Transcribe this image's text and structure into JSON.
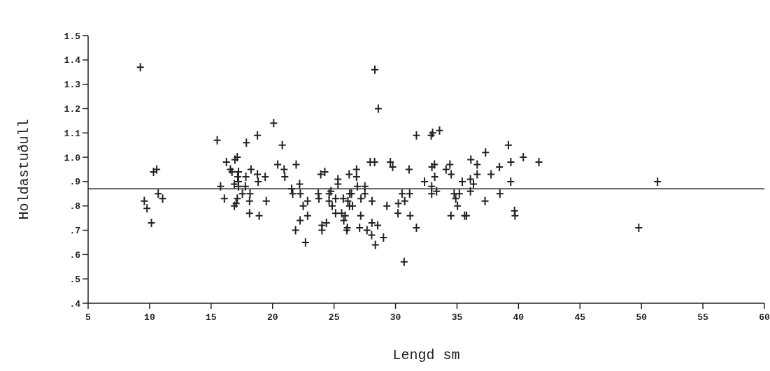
{
  "chart_data": {
    "type": "scatter",
    "xlabel": "Lengd sm",
    "ylabel": "Holdastuðull",
    "marker": "cross",
    "grid": false,
    "xlim": [
      5,
      60
    ],
    "xticks": [
      5,
      10,
      15,
      20,
      25,
      30,
      35,
      40,
      45,
      50,
      55,
      60
    ],
    "ylim": [
      0.4,
      1.5
    ],
    "yticks": [
      {
        "value": 0.4,
        "label": ".4"
      },
      {
        "value": 0.5,
        "label": ".5"
      },
      {
        "value": 0.6,
        "label": ".6"
      },
      {
        "value": 0.7,
        "label": ".7"
      },
      {
        "value": 0.8,
        "label": ".8"
      },
      {
        "value": 0.9,
        "label": ".9"
      },
      {
        "value": 1.0,
        "label": "1.0"
      },
      1.1,
      1.2,
      1.3,
      1.4,
      1.5
    ],
    "ref_lines": [
      {
        "axis": "y",
        "value": 0.87,
        "color": "#222222"
      }
    ],
    "series": [
      {
        "color": "#222222",
        "x": [
          9.25,
          9.57,
          9.79,
          10.15,
          10.32,
          10.58,
          10.7,
          11.06,
          15.5,
          15.77,
          16.08,
          16.25,
          16.57,
          16.7,
          16.89,
          16.94,
          17.13,
          16.89,
          17.13,
          17.04,
          17.23,
          17.17,
          17.23,
          17.23,
          17.55,
          17.79,
          17.83,
          17.87,
          18.17,
          18.13,
          18.13,
          18.25,
          18.77,
          18.77,
          18.83,
          18.91,
          19.4,
          19.49,
          20.09,
          20.42,
          20.79,
          20.94,
          21.0,
          21.55,
          21.64,
          21.92,
          21.87,
          22.2,
          22.26,
          22.24,
          22.49,
          22.85,
          22.85,
          22.68,
          23.72,
          23.77,
          23.92,
          24.25,
          24.02,
          24.38,
          24.02,
          24.6,
          24.75,
          24.6,
          24.85,
          25.13,
          25.13,
          25.32,
          25.32,
          25.62,
          25.75,
          25.79,
          25.91,
          26.13,
          26.08,
          26.04,
          26.23,
          26.28,
          26.42,
          26.26,
          26.5,
          26.83,
          26.83,
          26.9,
          27.17,
          27.19,
          27.08,
          27.51,
          27.51,
          27.68,
          27.94,
          28.3,
          28.09,
          28.08,
          28.55,
          28.06,
          28.36,
          28.32,
          28.6,
          29.02,
          29.3,
          29.58,
          29.77,
          30.2,
          30.23,
          30.53,
          30.75,
          30.7,
          31.1,
          31.15,
          31.19,
          31.7,
          31.7,
          32.36,
          32.9,
          33.02,
          33.58,
          32.96,
          33.17,
          33.19,
          32.94,
          32.94,
          33.34,
          34.11,
          34.42,
          34.53,
          34.51,
          34.77,
          35.19,
          34.9,
          35.04,
          35.43,
          35.62,
          35.77,
          36.13,
          36.09,
          36.34,
          36.09,
          36.64,
          36.64,
          37.32,
          37.28,
          37.77,
          38.45,
          38.49,
          39.18,
          39.38,
          39.37,
          39.72,
          39.68,
          40.39,
          41.66,
          49.78,
          51.31
        ],
        "values": [
          1.37,
          0.82,
          0.79,
          0.73,
          0.94,
          0.95,
          0.85,
          0.83,
          1.07,
          0.88,
          0.83,
          0.98,
          0.95,
          0.94,
          0.8,
          0.99,
          1.0,
          0.89,
          0.83,
          0.81,
          0.94,
          0.92,
          0.9,
          0.88,
          0.85,
          0.88,
          0.92,
          1.06,
          0.85,
          0.82,
          0.77,
          0.95,
          1.09,
          0.93,
          0.9,
          0.76,
          0.92,
          0.82,
          1.14,
          0.97,
          1.05,
          0.95,
          0.92,
          0.87,
          0.85,
          0.97,
          0.7,
          0.89,
          0.85,
          0.74,
          0.8,
          0.82,
          0.76,
          0.65,
          0.85,
          0.83,
          0.93,
          0.94,
          0.72,
          0.73,
          0.7,
          0.85,
          0.86,
          0.82,
          0.8,
          0.83,
          0.77,
          0.91,
          0.89,
          0.77,
          0.83,
          0.74,
          0.76,
          0.82,
          0.71,
          0.7,
          0.93,
          0.85,
          0.85,
          0.8,
          0.8,
          0.95,
          0.92,
          0.88,
          0.76,
          0.83,
          0.71,
          0.88,
          0.85,
          0.7,
          0.98,
          0.98,
          0.82,
          0.73,
          0.72,
          0.68,
          0.64,
          1.36,
          1.2,
          0.67,
          0.8,
          0.98,
          0.96,
          0.77,
          0.81,
          0.85,
          0.82,
          0.57,
          0.95,
          0.85,
          0.76,
          1.09,
          0.71,
          0.9,
          1.09,
          1.1,
          1.11,
          0.96,
          0.97,
          0.92,
          0.88,
          0.85,
          0.86,
          0.95,
          0.97,
          0.93,
          0.76,
          0.85,
          0.85,
          0.83,
          0.8,
          0.9,
          0.76,
          0.76,
          0.99,
          0.91,
          0.89,
          0.86,
          0.97,
          0.93,
          1.02,
          0.82,
          0.93,
          0.96,
          0.85,
          1.05,
          0.98,
          0.9,
          0.76,
          0.78,
          1.0,
          0.98,
          0.71,
          0.9
        ]
      }
    ]
  }
}
